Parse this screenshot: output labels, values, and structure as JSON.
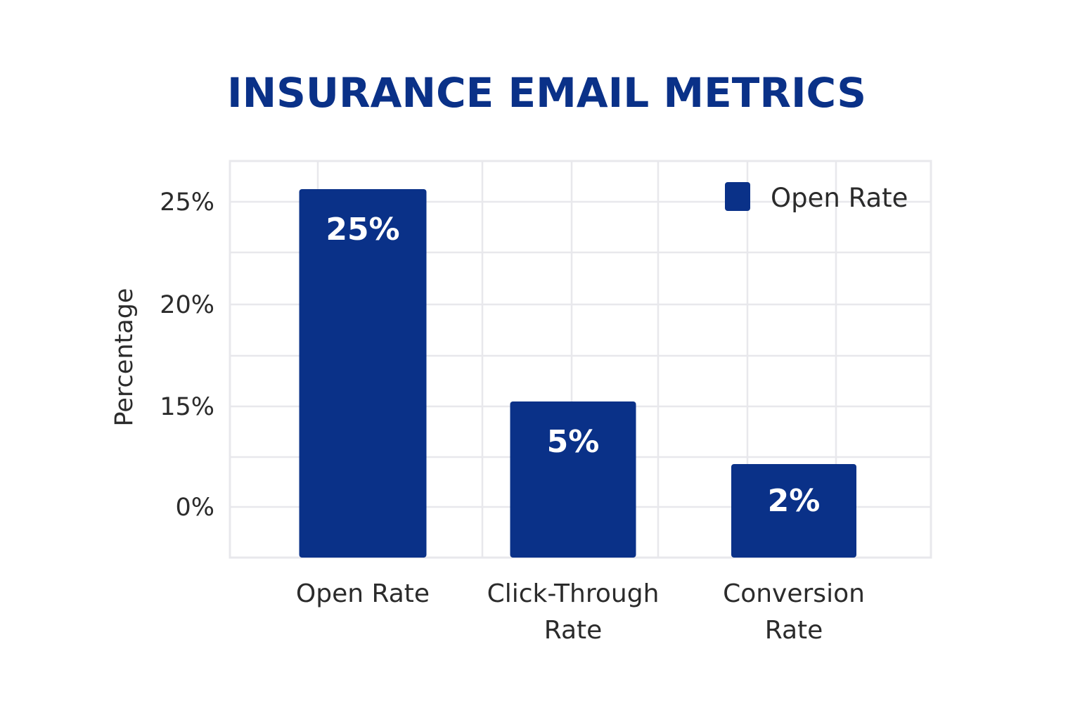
{
  "chart_data": {
    "type": "bar",
    "title": "INSURANCE EMAIL METRICS",
    "ylabel": "Percentage",
    "xlabel": "",
    "categories": [
      [
        "Open Rate"
      ],
      [
        "Click-Through",
        "Rate"
      ],
      [
        "Conversion",
        "Rate"
      ]
    ],
    "values": [
      25,
      5,
      2
    ],
    "value_labels": [
      "25%",
      "5%",
      "2%"
    ],
    "yticks": [
      {
        "value": 0,
        "label": "0%"
      },
      {
        "value": 15,
        "label": "15%"
      },
      {
        "value": 20,
        "label": "20%"
      },
      {
        "value": 25,
        "label": "25%"
      }
    ],
    "grid": true,
    "legend": {
      "position": "top-right",
      "entries": [
        "Open Rate"
      ]
    },
    "colors": {
      "bar": "#0a3188",
      "title": "#0a3188",
      "grid": "#e8e8ec",
      "text": "#2b2b2b"
    }
  }
}
